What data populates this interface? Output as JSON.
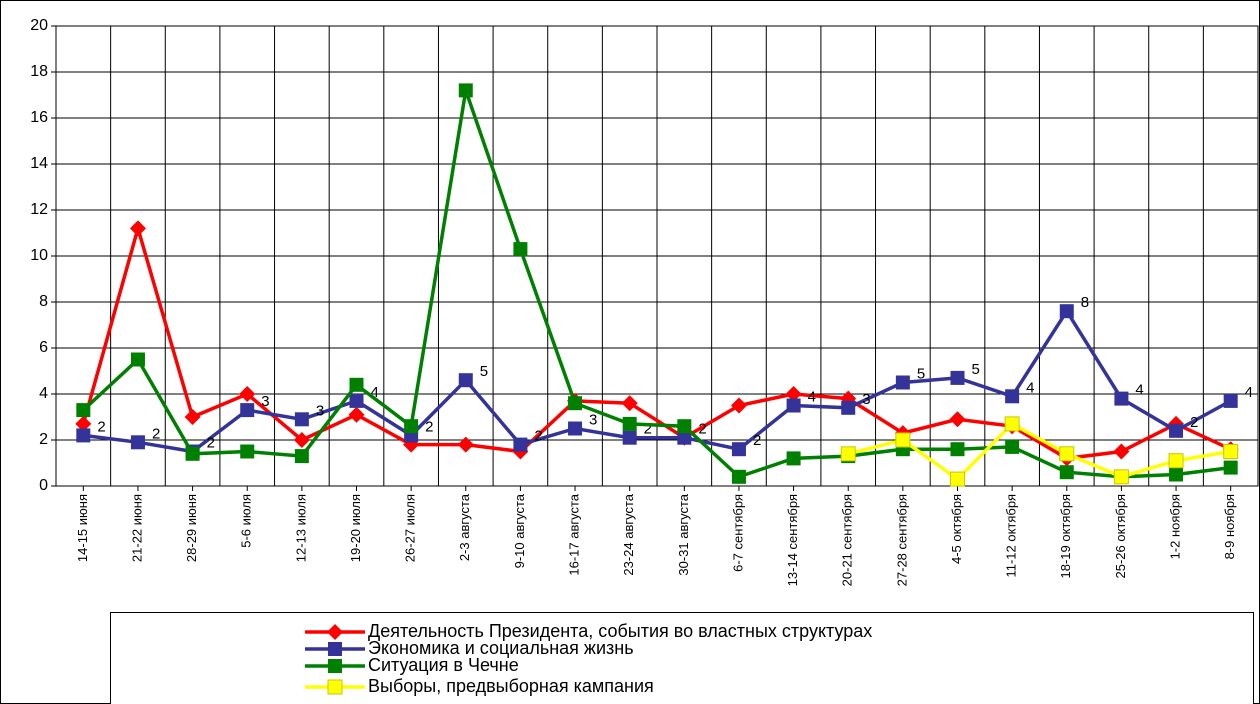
{
  "chart_data": {
    "type": "line",
    "categories": [
      "14-15 июня",
      "21-22 июня",
      "28-29 июня",
      "5-6 июля",
      "12-13 июля",
      "19-20 июля",
      "26-27 июля",
      "2-3 августа",
      "9-10 августа",
      "16-17 августа",
      "23-24 августа",
      "30-31 августа",
      "6-7 сентября",
      "13-14 сентября",
      "20-21 сентября",
      "27-28 сентября",
      "4-5 октября",
      "11-12 октября",
      "18-19 октября",
      "25-26 октября",
      "1-2 ноября",
      "8-9 ноября"
    ],
    "series": [
      {
        "name": "Деятельность Президента, события во властных структурах",
        "color": "#ff0000",
        "marker": "diamond",
        "values": [
          2.7,
          11.2,
          3.0,
          4.0,
          2.0,
          3.1,
          1.8,
          1.8,
          1.5,
          3.7,
          3.6,
          2.1,
          3.5,
          4.0,
          3.8,
          2.3,
          2.9,
          2.6,
          1.2,
          1.5,
          2.7,
          1.6
        ]
      },
      {
        "name": "Экономика и социальная жизнь",
        "color": "#333399",
        "marker": "square",
        "values": [
          2.2,
          1.9,
          1.5,
          3.3,
          2.9,
          3.7,
          2.2,
          4.6,
          1.8,
          2.5,
          2.1,
          2.1,
          1.6,
          3.5,
          3.4,
          4.5,
          4.7,
          3.9,
          7.6,
          3.8,
          2.4,
          3.7
        ],
        "value_labels": [
          "2",
          "2",
          "2",
          "3",
          "3",
          "4",
          "2",
          "5",
          "2",
          "3",
          "2",
          "2",
          "2",
          "4",
          "3",
          "5",
          "5",
          "4",
          "8",
          "4",
          "2",
          "4"
        ]
      },
      {
        "name": "Ситуация в Чечне",
        "color": "#008000",
        "marker": "square",
        "values": [
          3.3,
          5.5,
          1.4,
          1.5,
          1.3,
          4.4,
          2.6,
          17.2,
          10.3,
          3.6,
          2.7,
          2.6,
          0.4,
          1.2,
          1.3,
          1.6,
          1.6,
          1.7,
          0.6,
          0.4,
          0.5,
          0.8
        ]
      },
      {
        "name": "Выборы, предвыборная кампания",
        "color": "#ffff00",
        "marker": "square",
        "values": [
          null,
          null,
          null,
          null,
          null,
          null,
          null,
          null,
          null,
          null,
          null,
          null,
          null,
          null,
          1.4,
          2.0,
          0.3,
          2.7,
          1.4,
          0.4,
          1.1,
          1.5
        ]
      }
    ],
    "ylim": [
      0,
      20
    ],
    "yticks": [
      0,
      2,
      4,
      6,
      8,
      10,
      12,
      14,
      16,
      18,
      20
    ],
    "grid": true
  }
}
